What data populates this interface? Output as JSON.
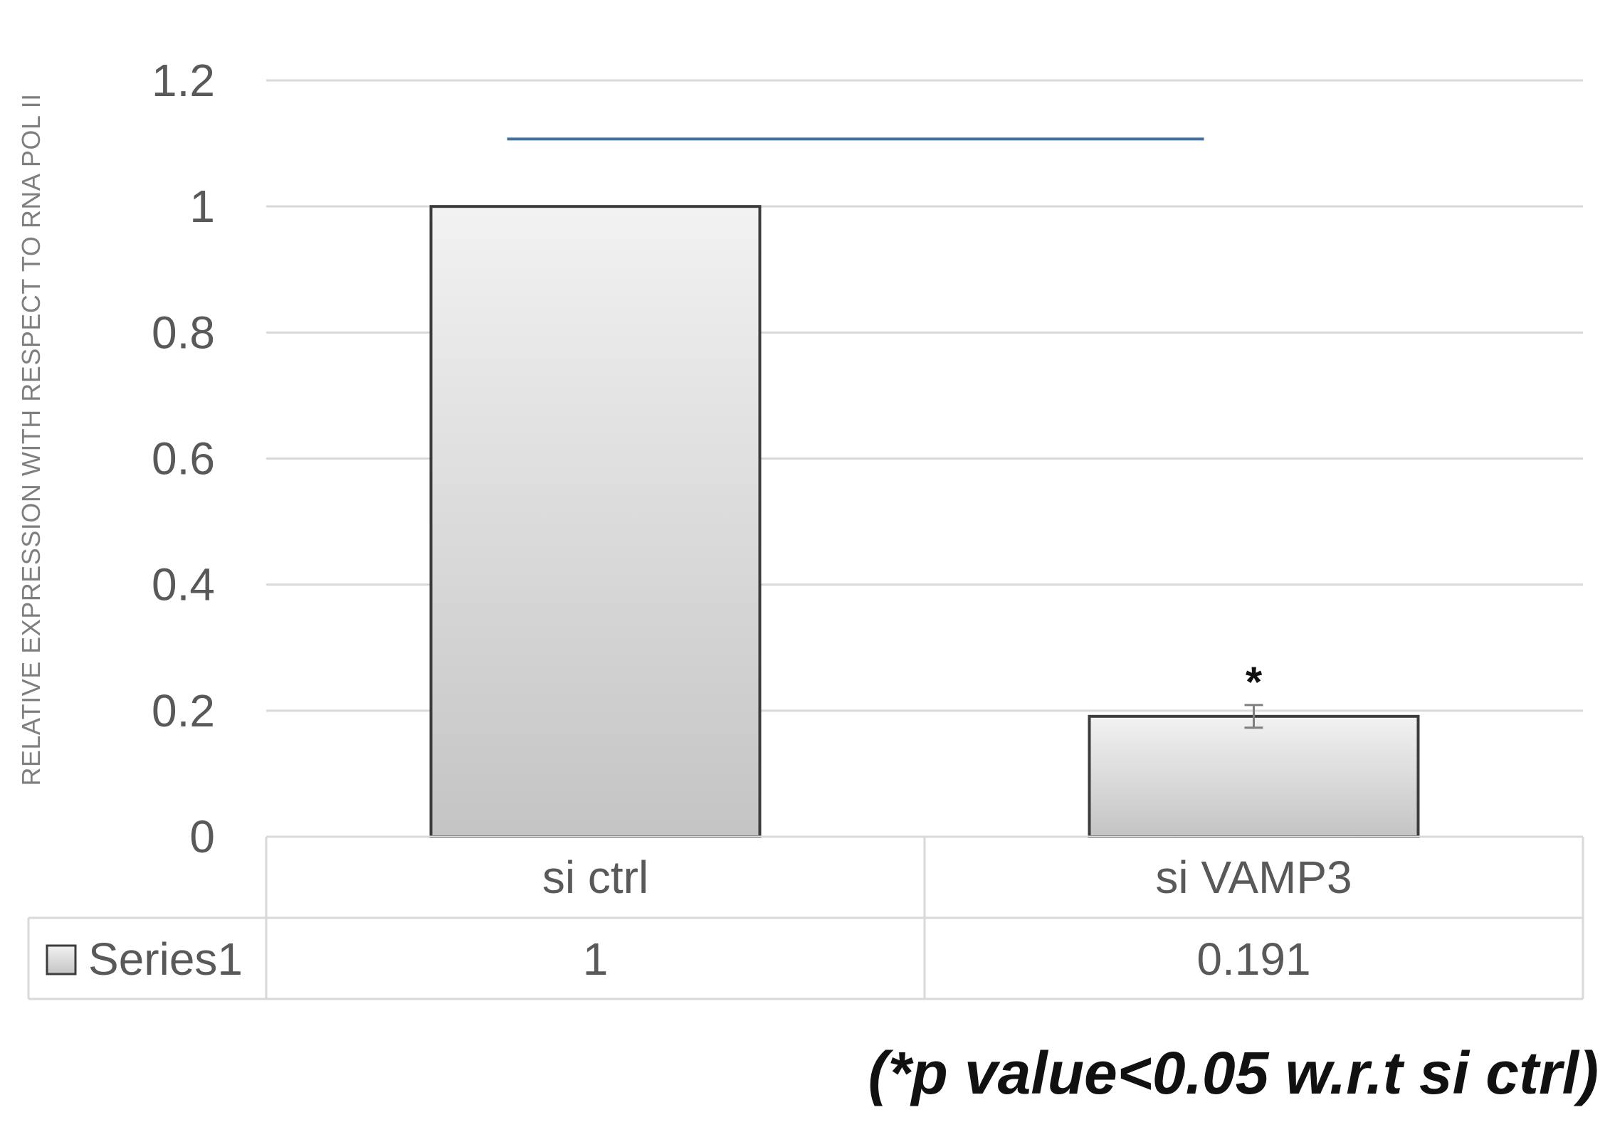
{
  "chart_data": {
    "type": "bar",
    "ylabel": "RELATIVE EXPRESSION WITH RESPECT TO  RNA POL II",
    "categories": [
      "si ctrl",
      "si VAMP3"
    ],
    "series": [
      {
        "name": "Series1",
        "values": [
          1,
          0.191
        ],
        "value_labels": [
          "1",
          "0.191"
        ],
        "errors": [
          0,
          0.018
        ]
      }
    ],
    "ylim": [
      0,
      1.2
    ],
    "yticks": [
      0,
      0.2,
      0.4,
      0.6,
      0.8,
      1,
      1.2
    ],
    "ytick_labels": [
      "0",
      "0.2",
      "0.4",
      "0.6",
      "0.8",
      "1",
      "1.2"
    ],
    "grid": true,
    "legend": "data-table",
    "significance_marker": {
      "category": "si VAMP3",
      "symbol": "*"
    },
    "bracket_level": 1.107,
    "colors": {
      "bar_top": "#f2f2f2",
      "bar_bottom": "#c4c4c4",
      "bar_edge": "#3c3c3c",
      "grid": "#d9d9d9",
      "bracket": "#41719c"
    }
  },
  "footnote": "(*p value<0.05 w.r.t si ctrl)"
}
